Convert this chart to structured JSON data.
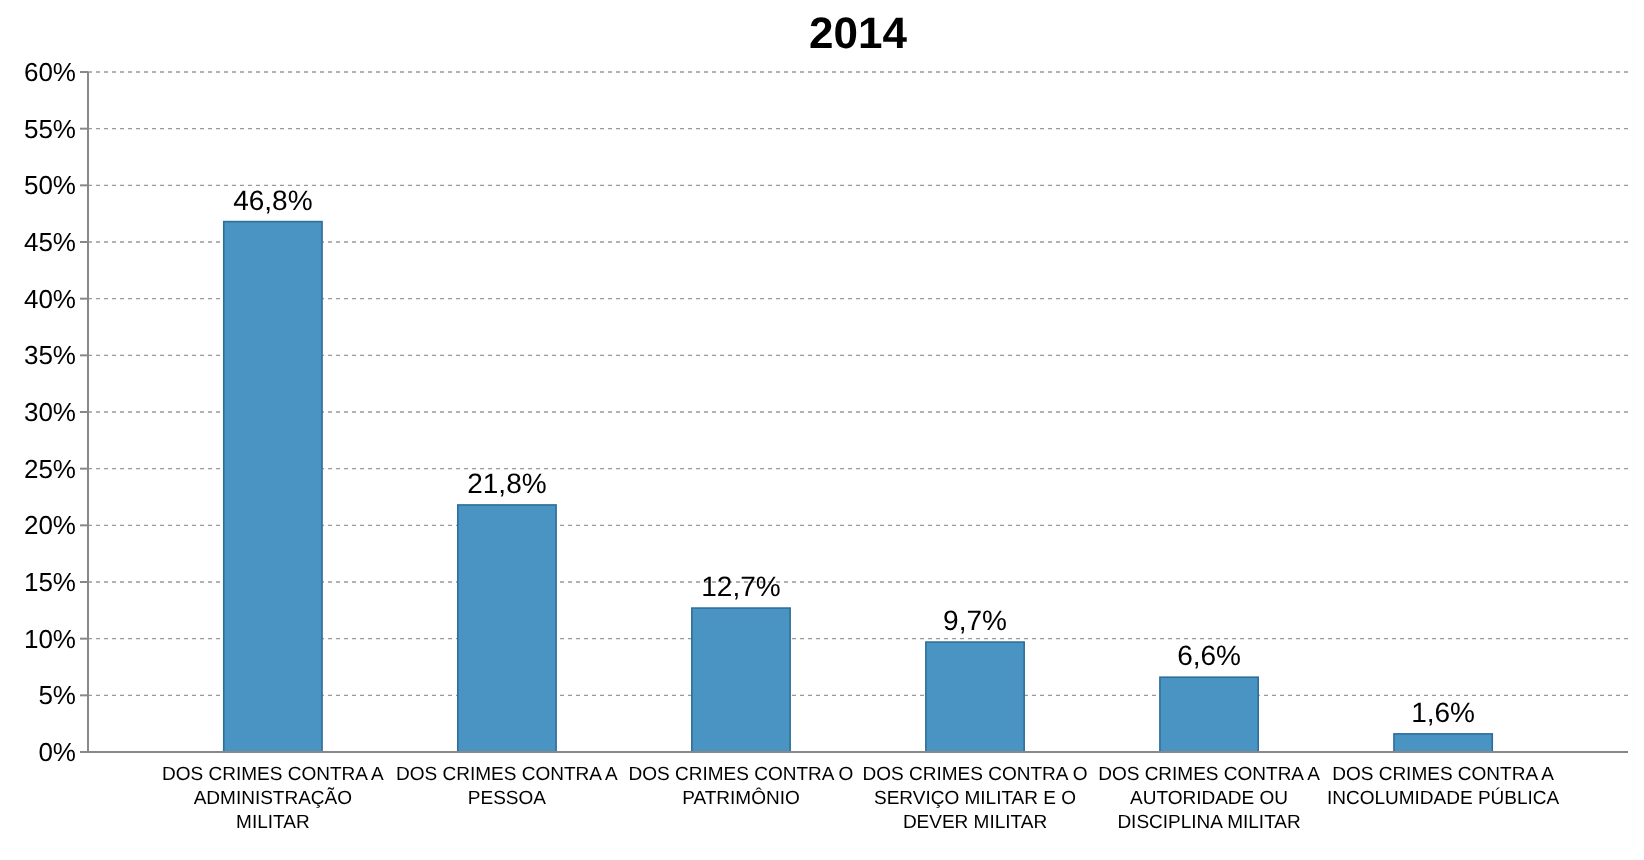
{
  "chart_data": {
    "type": "bar",
    "title": "2014",
    "categories": [
      "DOS CRIMES CONTRA A ADMINISTRAÇÃO MILITAR",
      "DOS CRIMES CONTRA A PESSOA",
      "DOS CRIMES CONTRA O PATRIMÔNIO",
      "DOS CRIMES CONTRA O SERVIÇO MILITAR E O DEVER MILITAR",
      "DOS CRIMES CONTRA A AUTORIDADE OU DISCIPLINA MILITAR",
      "DOS CRIMES CONTRA A INCOLUMIDADE PÚBLICA"
    ],
    "values": [
      46.8,
      21.8,
      12.7,
      9.7,
      6.6,
      1.6
    ],
    "value_labels": [
      "46,8%",
      "21,8%",
      "12,7%",
      "9,7%",
      "6,6%",
      "1,6%"
    ],
    "color": "#4a94c4",
    "ylim": [
      0,
      60
    ],
    "yticks": [
      {
        "value": 0,
        "label": "0%"
      },
      {
        "value": 5,
        "label": "5%"
      },
      {
        "value": 10,
        "label": "10%"
      },
      {
        "value": 15,
        "label": "15%"
      },
      {
        "value": 20,
        "label": "20%"
      },
      {
        "value": 25,
        "label": "25%"
      },
      {
        "value": 30,
        "label": "30%"
      },
      {
        "value": 35,
        "label": "35%"
      },
      {
        "value": 40,
        "label": "40%"
      },
      {
        "value": 45,
        "label": "45%"
      },
      {
        "value": 50,
        "label": "50%"
      },
      {
        "value": 55,
        "label": "55%"
      },
      {
        "value": 60,
        "label": "60%"
      }
    ],
    "grid": "y"
  }
}
